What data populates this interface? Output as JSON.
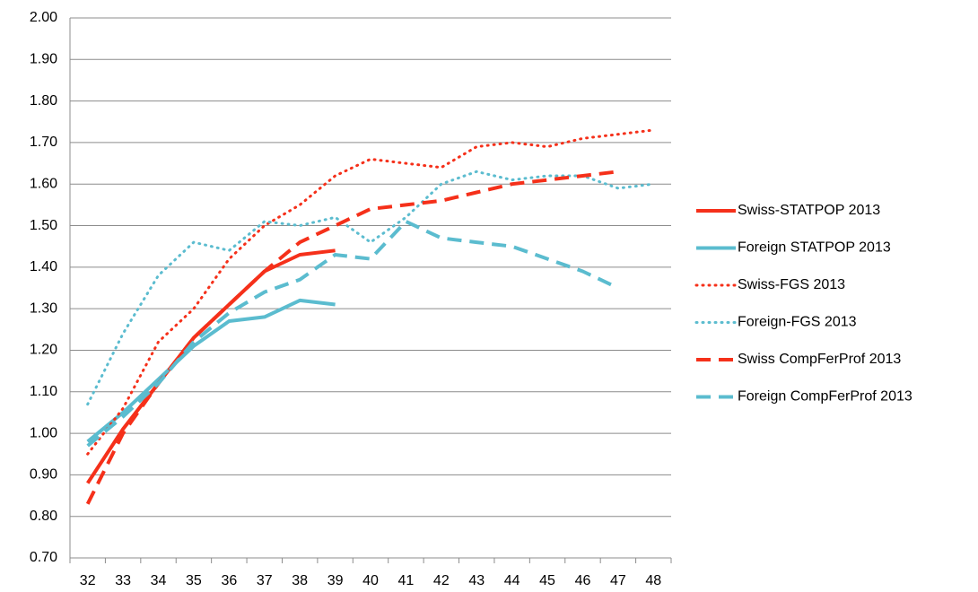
{
  "chart_data": {
    "type": "line",
    "categories": [
      "32",
      "33",
      "34",
      "35",
      "36",
      "37",
      "38",
      "39",
      "40",
      "41",
      "42",
      "43",
      "44",
      "45",
      "46",
      "47",
      "48"
    ],
    "ylim": [
      0.7,
      2.0
    ],
    "yticks": [
      {
        "value": 0.7,
        "label": "0.70"
      },
      {
        "value": 0.8,
        "label": "0.80"
      },
      {
        "value": 0.9,
        "label": "0.90"
      },
      {
        "value": 1.0,
        "label": "1.00"
      },
      {
        "value": 1.1,
        "label": "1.10"
      },
      {
        "value": 1.2,
        "label": "1.20"
      },
      {
        "value": 1.3,
        "label": "1.30"
      },
      {
        "value": 1.4,
        "label": "1.40"
      },
      {
        "value": 1.5,
        "label": "1.50"
      },
      {
        "value": 1.6,
        "label": "1.60"
      },
      {
        "value": 1.7,
        "label": "1.70"
      },
      {
        "value": 1.8,
        "label": "1.80"
      },
      {
        "value": 1.9,
        "label": "1.90"
      },
      {
        "value": 2.0,
        "label": "2.00"
      }
    ],
    "grid": true,
    "legend": "right",
    "series": [
      {
        "name": "Swiss-STATPOP 2013",
        "color": "#f5301a",
        "dash": "solid",
        "values": [
          0.88,
          1.01,
          1.12,
          1.23,
          1.31,
          1.39,
          1.43,
          1.44,
          null,
          null,
          null,
          null,
          null,
          null,
          null,
          null,
          null
        ]
      },
      {
        "name": "Foreign STATPOP 2013",
        "color": "#5bbccf",
        "dash": "solid",
        "values": [
          0.98,
          1.05,
          1.13,
          1.21,
          1.27,
          1.28,
          1.32,
          1.31,
          null,
          null,
          null,
          null,
          null,
          null,
          null,
          null,
          null
        ]
      },
      {
        "name": "Swiss-FGS 2013",
        "color": "#f5301a",
        "dash": "dot",
        "values": [
          0.95,
          1.06,
          1.22,
          1.3,
          1.42,
          1.5,
          1.55,
          1.62,
          1.66,
          1.65,
          1.64,
          1.69,
          1.7,
          1.69,
          1.71,
          1.72,
          1.73
        ]
      },
      {
        "name": "Foreign-FGS 2013",
        "color": "#5bbccf",
        "dash": "dot",
        "values": [
          1.07,
          1.24,
          1.38,
          1.46,
          1.44,
          1.51,
          1.5,
          1.52,
          1.46,
          1.52,
          1.6,
          1.63,
          1.61,
          1.62,
          1.62,
          1.59,
          1.6
        ]
      },
      {
        "name": "Swiss CompFerProf 2013",
        "color": "#f5301a",
        "dash": "dash",
        "values": [
          0.83,
          1.0,
          1.12,
          1.23,
          1.31,
          1.39,
          1.46,
          1.5,
          1.54,
          1.55,
          1.56,
          1.58,
          1.6,
          1.61,
          1.62,
          1.63,
          null
        ]
      },
      {
        "name": "Foreign CompFerProf 2013",
        "color": "#5bbccf",
        "dash": "dash",
        "values": [
          0.97,
          1.04,
          1.12,
          1.22,
          1.29,
          1.34,
          1.37,
          1.43,
          1.42,
          1.51,
          1.47,
          1.46,
          1.45,
          1.42,
          1.39,
          1.35,
          null
        ]
      }
    ]
  }
}
